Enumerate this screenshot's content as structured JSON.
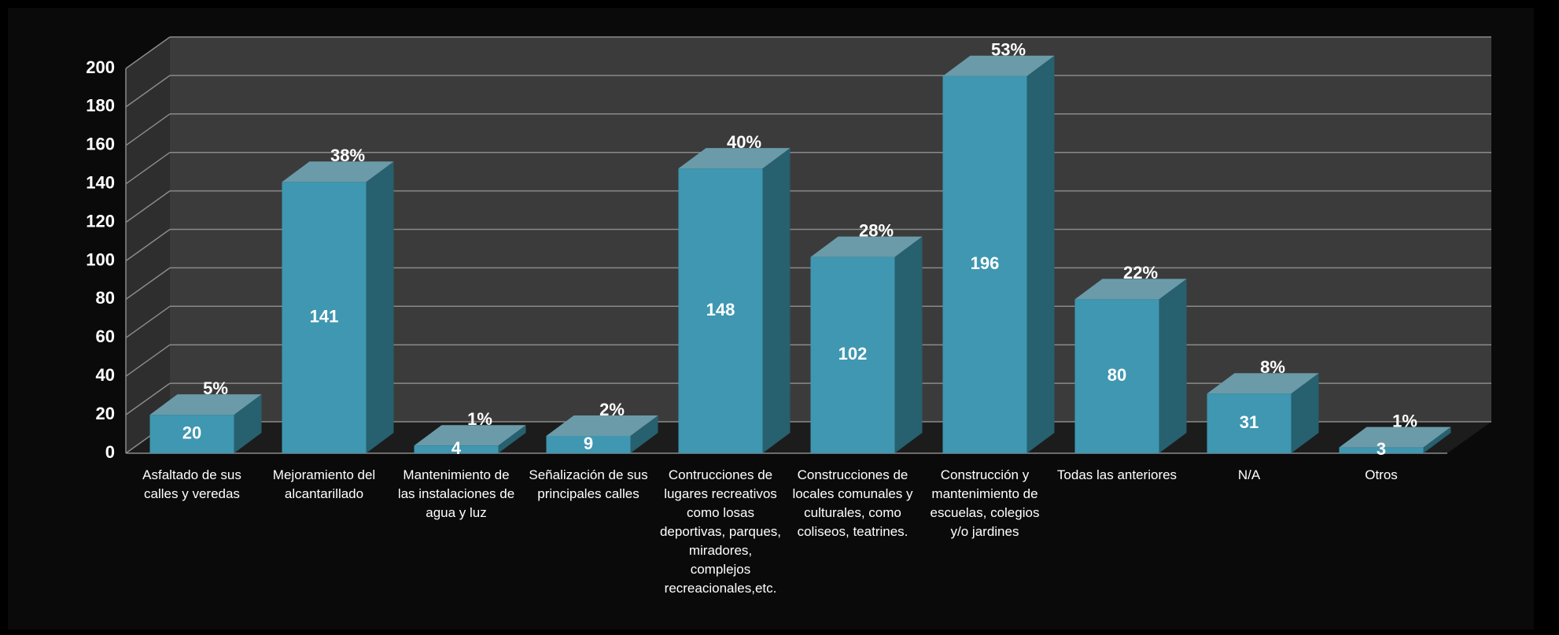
{
  "chart_data": {
    "type": "bar3d",
    "categories": [
      "Asfaltado de sus calles y veredas",
      "Mejoramiento del alcantarillado",
      "Mantenimiento de las instalaciones de agua y luz",
      "Señalización de sus principales calles",
      "Contrucciones de lugares recreativos como losas deportivas, parques, miradores, complejos recreacionales,etc.",
      "Construcciones de locales comunales y culturales, como coliseos, teatrines.",
      "Construcción y mantenimiento de escuelas, colegios y/o jardines",
      "Todas las anteriores",
      "N/A",
      "Otros"
    ],
    "values": [
      20,
      141,
      4,
      9,
      148,
      102,
      196,
      80,
      31,
      3
    ],
    "percent_labels": [
      "5%",
      "38%",
      "1%",
      "2%",
      "40%",
      "28%",
      "53%",
      "22%",
      "8%",
      "1%"
    ],
    "color": "#3f97b1",
    "ylim": [
      0,
      200
    ],
    "yticks": [
      0,
      20,
      40,
      60,
      80,
      100,
      120,
      140,
      160,
      180,
      200
    ],
    "grid": true
  }
}
